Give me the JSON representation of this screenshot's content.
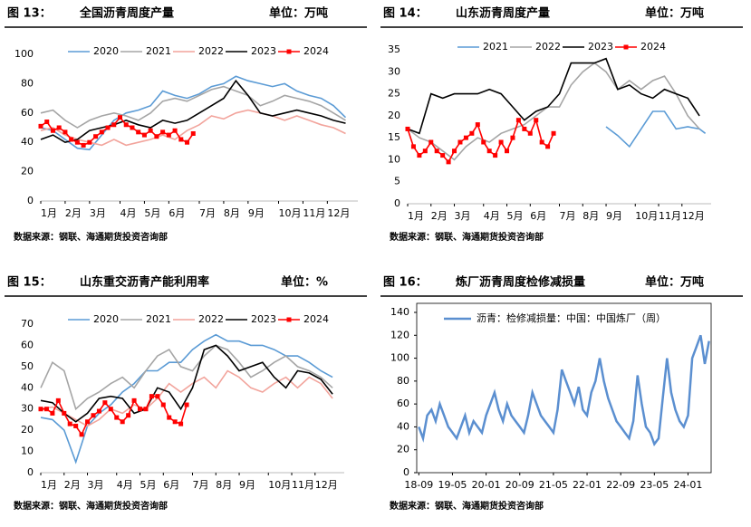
{
  "chart_data": [
    {
      "type": "line",
      "figure_label": "图 13：",
      "title": "全国沥青周度产量",
      "unit": "单位：万吨",
      "source": "数据来源：钢联、海通期货投资咨询部",
      "xlim": [
        1,
        53
      ],
      "xticks": [
        {
          "value": 1,
          "label": "1月"
        },
        {
          "value": 5,
          "label": "2月"
        },
        {
          "value": 9,
          "label": "3月"
        },
        {
          "value": 14,
          "label": "4月"
        },
        {
          "value": 18,
          "label": "5月"
        },
        {
          "value": 22,
          "label": "6月"
        },
        {
          "value": 27,
          "label": "7月"
        },
        {
          "value": 31,
          "label": "8月"
        },
        {
          "value": 35,
          "label": "9月"
        },
        {
          "value": 40,
          "label": "10月"
        },
        {
          "value": 44,
          "label": "11月"
        },
        {
          "value": 48,
          "label": "12月"
        }
      ],
      "ylim": [
        0,
        100
      ],
      "yticks": [
        0,
        20,
        40,
        60,
        80,
        100
      ],
      "x": [
        1,
        3,
        5,
        7,
        9,
        11,
        13,
        15,
        17,
        19,
        21,
        23,
        25,
        27,
        29,
        31,
        33,
        35,
        37,
        39,
        41,
        43,
        45,
        47,
        49,
        51
      ],
      "series": [
        {
          "name": "2020",
          "color": "#5b9bd5",
          "values": [
            50,
            48,
            42,
            36,
            35,
            45,
            55,
            60,
            62,
            65,
            75,
            72,
            70,
            73,
            78,
            80,
            85,
            82,
            80,
            78,
            80,
            75,
            72,
            70,
            65,
            57
          ]
        },
        {
          "name": "2021",
          "color": "#a5a5a5",
          "values": [
            60,
            62,
            55,
            50,
            55,
            58,
            60,
            58,
            55,
            60,
            68,
            70,
            68,
            72,
            76,
            78,
            75,
            72,
            65,
            68,
            72,
            70,
            68,
            65,
            60,
            55
          ]
        },
        {
          "name": "2022",
          "color": "#f2a49c",
          "values": [
            48,
            50,
            45,
            42,
            40,
            38,
            42,
            38,
            40,
            42,
            45,
            42,
            48,
            52,
            58,
            56,
            60,
            62,
            60,
            58,
            55,
            58,
            55,
            52,
            50,
            46
          ]
        },
        {
          "name": "2023",
          "color": "#000000",
          "values": [
            42,
            45,
            40,
            42,
            48,
            50,
            52,
            55,
            52,
            50,
            55,
            53,
            55,
            60,
            65,
            70,
            82,
            72,
            60,
            58,
            60,
            62,
            60,
            58,
            55,
            53
          ]
        },
        {
          "name": "2024",
          "color": "#ff0000",
          "marker": "square",
          "x": [
            1,
            2,
            3,
            4,
            5,
            6,
            7,
            8,
            9,
            10,
            11,
            12,
            13,
            14,
            15,
            16,
            17,
            18,
            19,
            20,
            21,
            22,
            23,
            24,
            25,
            26
          ],
          "values": [
            51,
            54,
            48,
            50,
            47,
            42,
            40,
            38,
            40,
            44,
            47,
            50,
            52,
            57,
            52,
            50,
            47,
            45,
            48,
            44,
            47,
            45,
            48,
            42,
            40,
            46
          ]
        }
      ]
    },
    {
      "type": "line",
      "figure_label": "图 14：",
      "title": "山东沥青周度产量",
      "unit": "单位：万吨",
      "source": "数据来源：钢联、海通期货投资咨询部",
      "xlim": [
        1,
        53
      ],
      "xticks": [
        {
          "value": 1,
          "label": "1月"
        },
        {
          "value": 5,
          "label": "2月"
        },
        {
          "value": 9,
          "label": "3月"
        },
        {
          "value": 14,
          "label": "4月"
        },
        {
          "value": 18,
          "label": "5月"
        },
        {
          "value": 22,
          "label": "6月"
        },
        {
          "value": 27,
          "label": "7月"
        },
        {
          "value": 31,
          "label": "8月"
        },
        {
          "value": 35,
          "label": "9月"
        },
        {
          "value": 40,
          "label": "10月"
        },
        {
          "value": 44,
          "label": "11月"
        },
        {
          "value": 48,
          "label": "12月"
        }
      ],
      "ylim": [
        0,
        35
      ],
      "yticks": [
        0,
        5,
        10,
        15,
        20,
        25,
        30,
        35
      ],
      "x": [
        1,
        3,
        5,
        7,
        9,
        11,
        13,
        15,
        17,
        19,
        21,
        23,
        25,
        27,
        29,
        31,
        33,
        35,
        37,
        39,
        41,
        43,
        45,
        47,
        49,
        51
      ],
      "series": [
        {
          "name": "2021",
          "color": "#5b9bd5",
          "x": [
            35,
            37,
            39,
            41,
            43,
            45,
            47,
            49,
            51,
            52
          ],
          "values": [
            17.5,
            15.5,
            13,
            17,
            21,
            21,
            17,
            17.5,
            17,
            16
          ]
        },
        {
          "name": "2022",
          "color": "#a5a5a5",
          "values": [
            17,
            15,
            14,
            12,
            10,
            13,
            15,
            14,
            16,
            17,
            18,
            20,
            22,
            22,
            27,
            30,
            32,
            30,
            26,
            28,
            26,
            28,
            29,
            25,
            20,
            17
          ]
        },
        {
          "name": "2023",
          "color": "#000000",
          "values": [
            17,
            16,
            25,
            24,
            25,
            25,
            25,
            26,
            25,
            22,
            19,
            21,
            22,
            25,
            32,
            32,
            32,
            33,
            26,
            27,
            25,
            24,
            26,
            25,
            24,
            20
          ]
        },
        {
          "name": "2024",
          "color": "#ff0000",
          "marker": "square",
          "x": [
            1,
            2,
            3,
            4,
            5,
            6,
            7,
            8,
            9,
            10,
            11,
            12,
            13,
            14,
            15,
            16,
            17,
            18,
            19,
            20,
            21,
            22,
            23,
            24,
            25,
            26
          ],
          "values": [
            17,
            13,
            11,
            12,
            14,
            12,
            11,
            9.5,
            12,
            14,
            15,
            16,
            18,
            14,
            12,
            11,
            14,
            12,
            15,
            19,
            17,
            16,
            19,
            14,
            13,
            16
          ]
        }
      ]
    },
    {
      "type": "line",
      "figure_label": "图 15：",
      "title": "山东重交沥青产能利用率",
      "unit": "单位：%",
      "source": "数据来源：钢联、海通期货投资咨询部",
      "xlim": [
        1,
        53
      ],
      "xticks": [
        {
          "value": 1,
          "label": "1月"
        },
        {
          "value": 5,
          "label": "2月"
        },
        {
          "value": 9,
          "label": "3月"
        },
        {
          "value": 14,
          "label": "4月"
        },
        {
          "value": 18,
          "label": "5月"
        },
        {
          "value": 22,
          "label": "6月"
        },
        {
          "value": 27,
          "label": "7月"
        },
        {
          "value": 31,
          "label": "8月"
        },
        {
          "value": 35,
          "label": "9月"
        },
        {
          "value": 40,
          "label": "10月"
        },
        {
          "value": 44,
          "label": "11月"
        },
        {
          "value": 48,
          "label": "12月"
        }
      ],
      "ylim": [
        0,
        70
      ],
      "yticks": [
        0,
        10,
        20,
        30,
        40,
        50,
        60,
        70
      ],
      "x": [
        1,
        3,
        5,
        7,
        9,
        11,
        13,
        15,
        17,
        19,
        21,
        23,
        25,
        27,
        29,
        31,
        33,
        35,
        37,
        39,
        41,
        43,
        45,
        47,
        49,
        51
      ],
      "series": [
        {
          "name": "2020",
          "color": "#5b9bd5",
          "values": [
            26,
            25,
            20,
            5,
            22,
            28,
            32,
            38,
            42,
            48,
            48,
            52,
            52,
            58,
            62,
            65,
            62,
            62,
            60,
            60,
            58,
            55,
            55,
            52,
            48,
            45
          ]
        },
        {
          "name": "2021",
          "color": "#a5a5a5",
          "values": [
            40,
            52,
            48,
            30,
            35,
            38,
            42,
            45,
            40,
            48,
            55,
            58,
            50,
            48,
            55,
            60,
            58,
            52,
            45,
            48,
            52,
            55,
            50,
            48,
            45,
            40
          ]
        },
        {
          "name": "2022",
          "color": "#f2a49c",
          "values": [
            30,
            31,
            28,
            25,
            22,
            25,
            30,
            28,
            32,
            30,
            35,
            42,
            38,
            42,
            45,
            40,
            48,
            45,
            40,
            38,
            42,
            45,
            40,
            45,
            42,
            35
          ]
        },
        {
          "name": "2023",
          "color": "#000000",
          "values": [
            34,
            33,
            28,
            24,
            28,
            35,
            36,
            35,
            28,
            30,
            40,
            38,
            30,
            40,
            58,
            60,
            55,
            48,
            50,
            52,
            45,
            40,
            48,
            47,
            44,
            37
          ]
        },
        {
          "name": "2024",
          "color": "#ff0000",
          "marker": "square",
          "x": [
            1,
            2,
            3,
            4,
            5,
            6,
            7,
            8,
            9,
            10,
            11,
            12,
            13,
            14,
            15,
            16,
            17,
            18,
            19,
            20,
            21,
            22,
            23,
            24,
            25,
            26
          ],
          "values": [
            30,
            30,
            28,
            34,
            28,
            23,
            22,
            18,
            24,
            27,
            29,
            33,
            30,
            26,
            24,
            27,
            34,
            30,
            30,
            36,
            36,
            32,
            26,
            24,
            23,
            32
          ]
        }
      ]
    },
    {
      "type": "line",
      "figure_label": "图 16：",
      "title": "炼厂沥青周度检修减损量",
      "unit": "单位：万吨",
      "source": "数据来源：钢联、海通期货投资咨询部",
      "ylim": [
        0,
        140
      ],
      "yticks": [
        0,
        20,
        40,
        60,
        80,
        100,
        120,
        140
      ],
      "x": [
        "18-09",
        "18-10",
        "18-11",
        "18-12",
        "19-01",
        "19-02",
        "19-03",
        "19-04",
        "19-05",
        "19-06",
        "19-07",
        "19-08",
        "19-09",
        "19-10",
        "19-11",
        "19-12",
        "20-01",
        "20-02",
        "20-03",
        "20-04",
        "20-05",
        "20-06",
        "20-07",
        "20-08",
        "20-09",
        "20-10",
        "20-11",
        "20-12",
        "21-01",
        "21-02",
        "21-03",
        "21-04",
        "21-05",
        "21-06",
        "21-07",
        "21-08",
        "21-09",
        "21-10",
        "21-11",
        "21-12",
        "22-01",
        "22-02",
        "22-03",
        "22-04",
        "22-05",
        "22-06",
        "22-07",
        "22-08",
        "22-09",
        "22-10",
        "22-11",
        "22-12",
        "23-01",
        "23-02",
        "23-03",
        "23-04",
        "23-05",
        "23-06",
        "23-07",
        "23-08",
        "23-09",
        "23-10",
        "23-11",
        "23-12",
        "24-01",
        "24-02",
        "24-03",
        "24-04",
        "24-05",
        "24-06"
      ],
      "xticks": [
        "18-09",
        "19-05",
        "20-01",
        "20-09",
        "21-05",
        "22-01",
        "22-09",
        "23-05",
        "24-01"
      ],
      "series": [
        {
          "name": "沥青：检修减损量：中国：中国炼厂（周）",
          "color": "#5b8fd0",
          "values": [
            40,
            30,
            50,
            55,
            45,
            60,
            50,
            40,
            35,
            30,
            40,
            50,
            35,
            45,
            40,
            35,
            50,
            60,
            70,
            55,
            45,
            60,
            50,
            45,
            40,
            35,
            50,
            70,
            60,
            50,
            45,
            40,
            35,
            55,
            90,
            80,
            70,
            60,
            75,
            55,
            50,
            70,
            80,
            100,
            80,
            65,
            55,
            45,
            40,
            35,
            30,
            45,
            85,
            60,
            40,
            35,
            25,
            30,
            65,
            100,
            70,
            55,
            45,
            40,
            50,
            100,
            110,
            120,
            95,
            115
          ]
        }
      ]
    }
  ]
}
